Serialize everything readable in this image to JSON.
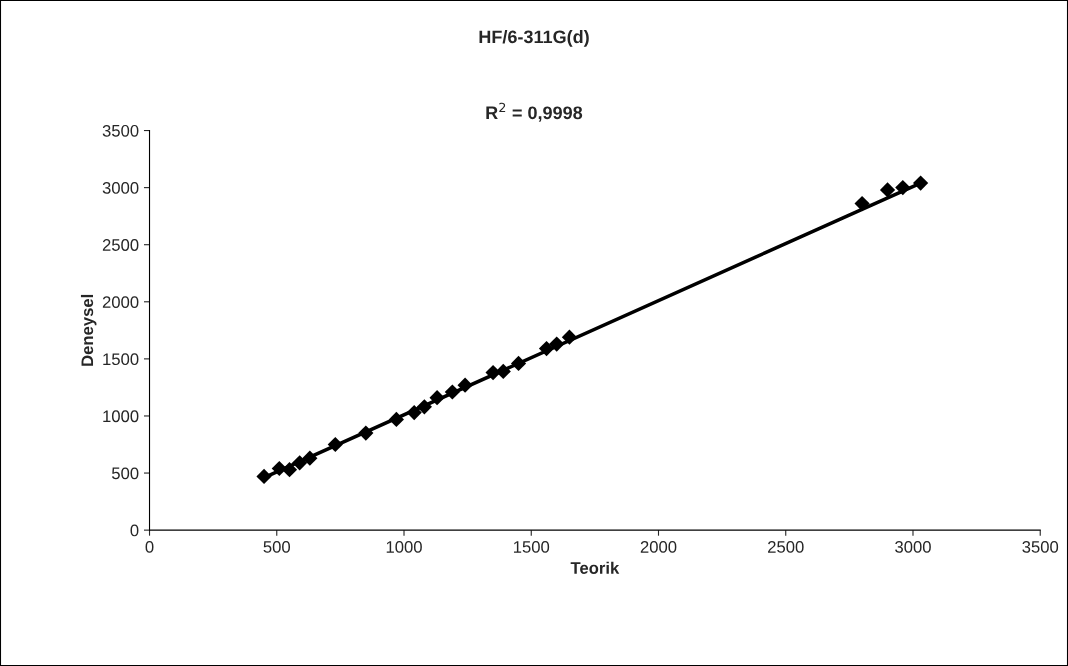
{
  "chart_data": {
    "type": "scatter",
    "title": "HF/6-311G(d)",
    "xlabel": "Teorik",
    "ylabel": "Deneysel",
    "annotations": [
      "R$^{2}$ = 0,9998"
    ],
    "xlim": [
      0,
      3500
    ],
    "ylim": [
      0,
      3500
    ],
    "xticks": [
      0,
      500,
      1000,
      1500,
      2000,
      2500,
      3000,
      3500
    ],
    "yticks": [
      0,
      500,
      1000,
      1500,
      2000,
      2500,
      3000,
      3500
    ],
    "grid": false,
    "legend": false,
    "series": [
      {
        "color": "#000000",
        "marker": "diamond",
        "x": [
          450,
          510,
          550,
          590,
          630,
          730,
          850,
          970,
          1040,
          1080,
          1130,
          1190,
          1240,
          1350,
          1390,
          1450,
          1560,
          1600,
          1650,
          2800,
          2900,
          2960,
          3030
        ],
        "values": [
          470,
          540,
          530,
          590,
          630,
          750,
          850,
          970,
          1030,
          1080,
          1160,
          1210,
          1270,
          1380,
          1390,
          1460,
          1590,
          1630,
          1690,
          2860,
          2980,
          3000,
          3040
        ]
      },
      {
        "type": "line",
        "color": "#000000",
        "marker": "none",
        "line_style": "solid",
        "x": [
          450,
          3030
        ],
        "values": [
          460,
          3040
        ]
      }
    ]
  }
}
